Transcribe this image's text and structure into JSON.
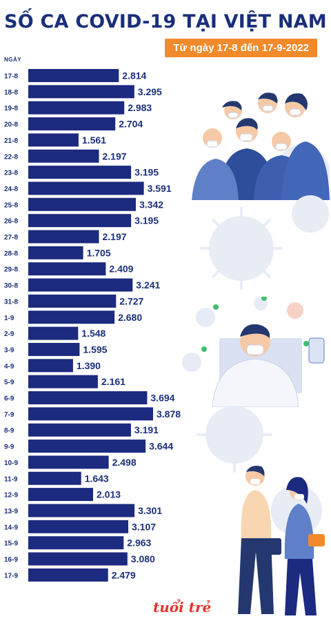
{
  "header": {
    "title": "SỐ CA COVID-19 TẠI VIỆT NAM",
    "subtitle": "Từ ngày 17-8 đến 17-9-2022",
    "day_axis_label": "NGÀY"
  },
  "footer": {
    "logo_text": "tuổi trẻ"
  },
  "colors": {
    "bar": "#1c2a7f",
    "title": "#1a2f7a",
    "accent": "#f08a2b",
    "label": "#1a2f7a"
  },
  "chart_data": {
    "type": "bar",
    "orientation": "horizontal",
    "title": "SỐ CA COVID-19 TẠI VIỆT NAM",
    "subtitle": "Từ ngày 17-8 đến 17-9-2022",
    "ylabel": "NGÀY",
    "categories": [
      "17-8",
      "18-8",
      "19-8",
      "20-8",
      "21-8",
      "22-8",
      "23-8",
      "24-8",
      "25-8",
      "26-8",
      "27-8",
      "28-8",
      "29-8",
      "30-8",
      "31-8",
      "1-9",
      "2-9",
      "3-9",
      "4-9",
      "5-9",
      "6-9",
      "7-9",
      "8-9",
      "9-9",
      "10-9",
      "11-9",
      "12-9",
      "13-9",
      "14-9",
      "15-9",
      "16-9",
      "17-9"
    ],
    "values": [
      2814,
      3295,
      2983,
      2704,
      1561,
      2197,
      3195,
      3591,
      3342,
      3195,
      2197,
      1705,
      2409,
      3241,
      2727,
      2680,
      1548,
      1595,
      1390,
      2161,
      3694,
      3878,
      3191,
      3644,
      2498,
      1643,
      2013,
      3301,
      3107,
      2963,
      3080,
      2479
    ],
    "value_labels": [
      "2.814",
      "3.295",
      "2.983",
      "2.704",
      "1.561",
      "2.197",
      "3.195",
      "3.591",
      "3.342",
      "3.195",
      "2.197",
      "1.705",
      "2.409",
      "3.241",
      "2.727",
      "2.680",
      "1.548",
      "1.595",
      "1.390",
      "2.161",
      "3.694",
      "3.878",
      "3.191",
      "3.644",
      "2.498",
      "1.643",
      "2.013",
      "3.301",
      "3.107",
      "2.963",
      "3.080",
      "2.479"
    ]
  }
}
